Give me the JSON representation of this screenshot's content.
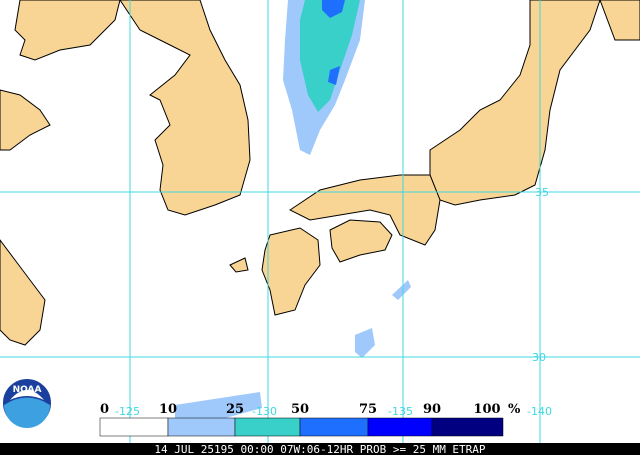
{
  "map": {
    "grid_labels": {
      "lat": [
        "35",
        "30"
      ],
      "lon": [
        "-125",
        "-130",
        "-135",
        "-140"
      ]
    },
    "legend": {
      "labels": [
        "0",
        "10",
        "25",
        "50",
        "75",
        "90",
        "100"
      ],
      "unit": "%",
      "colors": [
        "#ffffff",
        "#9fc8fb",
        "#38d0c8",
        "#1f6fff",
        "#0000ff",
        "#000080"
      ]
    },
    "logo": "NOAA",
    "caption": "14 JUL 25195 00:00 07W:06-12HR PROB >= 25 MM ETRAP"
  }
}
